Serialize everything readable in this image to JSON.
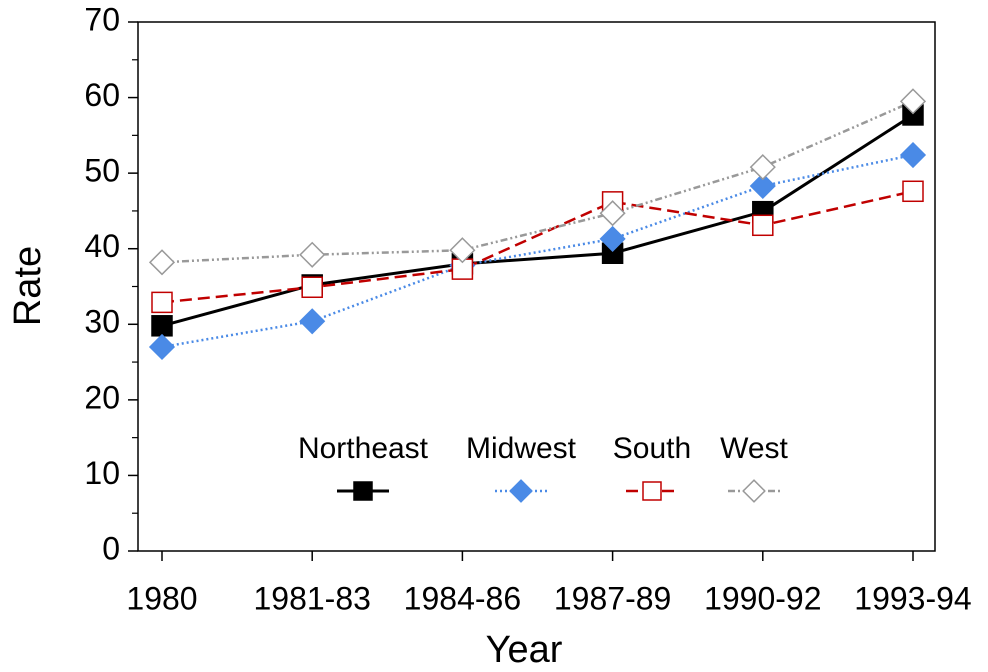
{
  "chart_data": {
    "type": "line",
    "x_label": "Year",
    "y_label": "Rate",
    "categories": [
      "1980",
      "1981-83",
      "1984-86",
      "1987-89",
      "1990-92",
      "1993-94"
    ],
    "ylim": [
      0,
      70
    ],
    "yticks": [
      0,
      10,
      20,
      30,
      40,
      50,
      60,
      70
    ],
    "legend": "center",
    "series": [
      {
        "name": "Northeast",
        "color": "#000000",
        "linestyle": "solid",
        "marker": "square",
        "marker_fill": true,
        "values": [
          29.8,
          35.2,
          38.0,
          39.4,
          44.9,
          57.7
        ]
      },
      {
        "name": "Midwest",
        "color": "#4a8ae6",
        "linestyle": "dotted",
        "marker": "diamond",
        "marker_fill": true,
        "values": [
          27.0,
          30.4,
          37.8,
          41.3,
          48.3,
          52.4
        ]
      },
      {
        "name": "South",
        "color": "#c00000",
        "linestyle": "dashed",
        "marker": "square",
        "marker_fill": false,
        "values": [
          32.9,
          34.9,
          37.3,
          46.2,
          43.1,
          47.6
        ]
      },
      {
        "name": "West",
        "color": "#999999",
        "linestyle": "dashdotdot",
        "marker": "diamond",
        "marker_fill": false,
        "values": [
          38.2,
          39.2,
          39.8,
          44.7,
          50.8,
          59.5
        ]
      }
    ]
  }
}
